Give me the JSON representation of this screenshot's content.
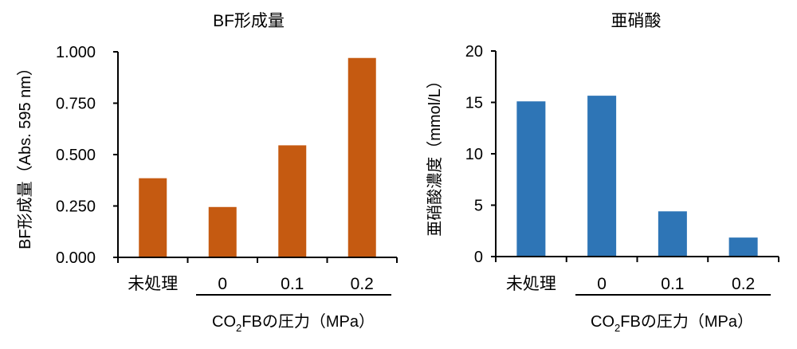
{
  "chart_data": [
    {
      "type": "bar",
      "title": "BF形成量",
      "ylabel": "BF形成量（Abs. 595 nm）",
      "xlabel_parts": {
        "pre": "CO",
        "sub": "2",
        "post": "FBの圧力（MPa）"
      },
      "categories": [
        "未処理",
        "0",
        "0.1",
        "0.2"
      ],
      "values": [
        0.385,
        0.245,
        0.545,
        0.97
      ],
      "ylim": [
        0,
        1.0
      ],
      "yticks": [
        "0.000",
        "0.250",
        "0.500",
        "0.750",
        "1.000"
      ],
      "ytick_values": [
        0,
        0.25,
        0.5,
        0.75,
        1.0
      ],
      "color": "#C55A11",
      "grid": false
    },
    {
      "type": "bar",
      "title": "亜硝酸",
      "ylabel": "亜硝酸濃度（mmol/L）",
      "xlabel_parts": {
        "pre": "CO",
        "sub": "2",
        "post": "FBの圧力（MPa）"
      },
      "categories": [
        "未処理",
        "0",
        "0.1",
        "0.2"
      ],
      "values": [
        15.1,
        15.65,
        4.4,
        1.85
      ],
      "ylim": [
        0,
        20
      ],
      "yticks": [
        "0",
        "5",
        "10",
        "15",
        "20"
      ],
      "ytick_values": [
        0,
        5,
        10,
        15,
        20
      ],
      "color": "#2E75B6",
      "grid": false
    }
  ]
}
